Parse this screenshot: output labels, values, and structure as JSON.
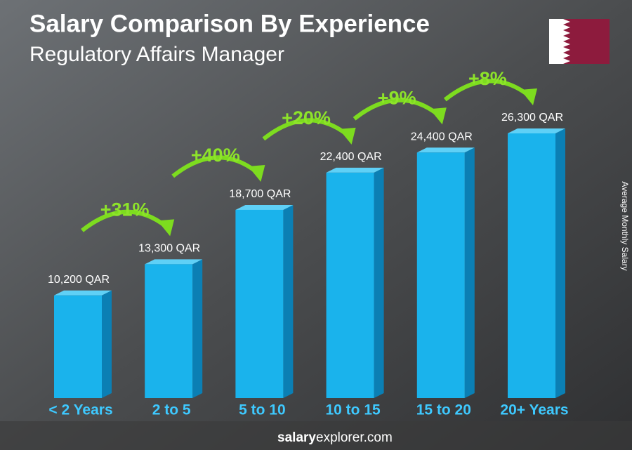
{
  "chart_data": {
    "type": "bar",
    "title": "Salary Comparison By Experience",
    "subtitle": "Regulatory Affairs Manager",
    "y_axis_label": "Average Monthly Salary",
    "categories": [
      "< 2 Years",
      "2 to 5",
      "5 to 10",
      "10 to 15",
      "15 to 20",
      "20+ Years"
    ],
    "values": [
      10200,
      13300,
      18700,
      22400,
      24400,
      26300
    ],
    "value_labels": [
      "10,200 QAR",
      "13,300 QAR",
      "18,700 QAR",
      "22,400 QAR",
      "24,400 QAR",
      "26,300 QAR"
    ],
    "annotations": [
      "+31%",
      "+40%",
      "+20%",
      "+9%",
      "+8%"
    ],
    "color": "#1ab3ec",
    "footer": [
      "salary",
      "explorer.com"
    ]
  }
}
